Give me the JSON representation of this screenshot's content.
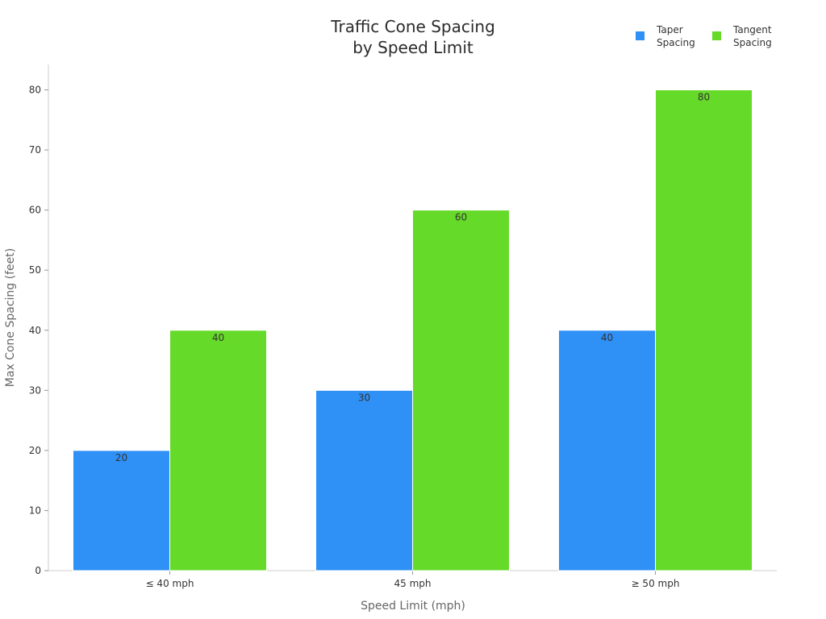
{
  "chart_data": {
    "type": "bar",
    "title": [
      "Traffic Cone Spacing",
      "by Speed Limit"
    ],
    "xlabel": "Speed Limit (mph)",
    "ylabel": "Max Cone Spacing (feet)",
    "categories": [
      "≤ 40 mph",
      "45 mph",
      "≥ 50 mph"
    ],
    "series": [
      {
        "name": [
          "Taper",
          "Spacing"
        ],
        "color": "#2f90f6",
        "values": [
          20,
          30,
          40
        ]
      },
      {
        "name": [
          "Tangent",
          "Spacing"
        ],
        "color": "#66da29",
        "values": [
          40,
          60,
          80
        ]
      }
    ],
    "ylim": [
      0,
      84
    ],
    "yticks": [
      0,
      10,
      20,
      30,
      40,
      50,
      60,
      70,
      80
    ],
    "legend_position": "top-right",
    "grid": false,
    "data_labels": true
  }
}
